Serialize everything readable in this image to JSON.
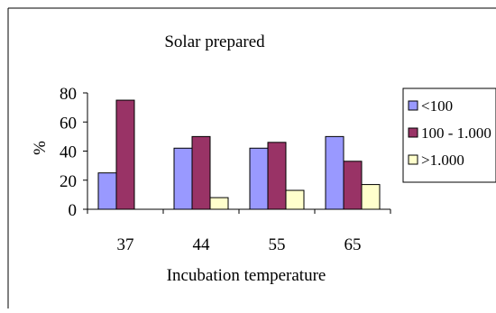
{
  "chart_data": {
    "type": "bar",
    "title": "Solar prepared",
    "xlabel": "Incubation temperature",
    "ylabel": "%",
    "categories": [
      "37",
      "44",
      "55",
      "65"
    ],
    "ylim": [
      0,
      80
    ],
    "yticks": [
      0,
      20,
      40,
      60,
      80
    ],
    "grid": false,
    "legend_position": "right",
    "series": [
      {
        "name": "<100",
        "color": "#9999ff",
        "values": [
          25,
          42,
          42,
          50
        ]
      },
      {
        "name": "100 - 1.000",
        "color": "#993366",
        "values": [
          75,
          50,
          46,
          33
        ]
      },
      {
        "name": ">1.000",
        "color": "#ffffcc",
        "values": [
          0,
          8,
          13,
          17
        ]
      }
    ]
  }
}
